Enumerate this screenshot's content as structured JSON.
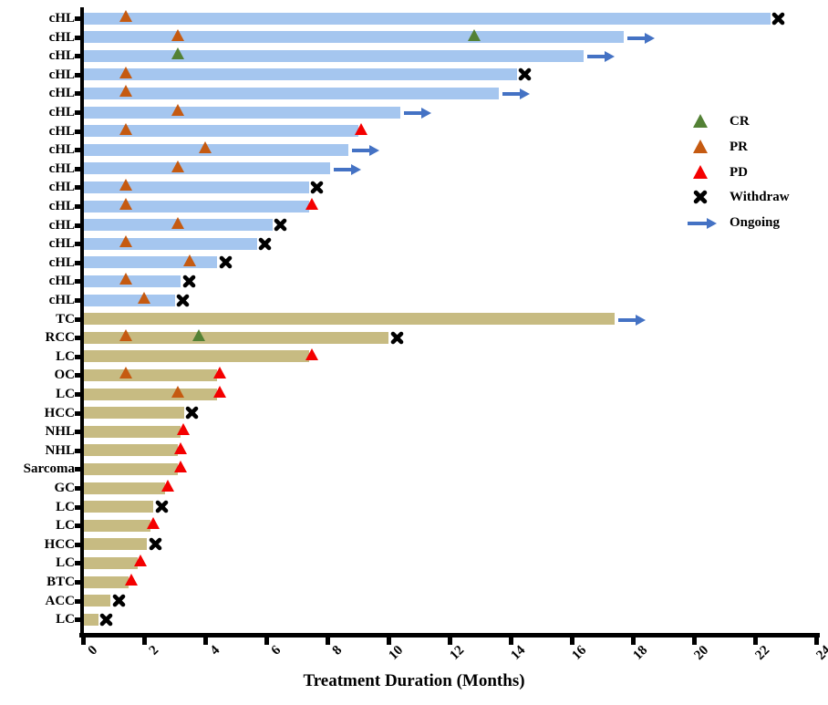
{
  "chart_data": {
    "type": "bar",
    "subtype": "swimmer-plot",
    "orientation": "horizontal",
    "title": "",
    "xlabel": "Treatment Duration (Months)",
    "ylabel": "",
    "xlim": [
      0,
      24
    ],
    "x_ticks": [
      "0",
      "2",
      "4",
      "6",
      "8",
      "10",
      "12",
      "14",
      "16",
      "18",
      "20",
      "22",
      "24"
    ],
    "grid": false,
    "legend_position": "right-upper",
    "bar_colors": {
      "cHL": "#A5C6EF",
      "other": "#C7BB82"
    },
    "marker_colors": {
      "CR": "#538135",
      "PR": "#C55A11",
      "PD": "#F40000",
      "Withdraw": "#000000",
      "Ongoing": "#4472C4"
    },
    "legend": [
      {
        "key": "CR",
        "label": "CR",
        "marker": "triangle"
      },
      {
        "key": "PR",
        "label": "PR",
        "marker": "triangle"
      },
      {
        "key": "PD",
        "label": "PD",
        "marker": "triangle"
      },
      {
        "key": "Withdraw",
        "label": "Withdraw",
        "marker": "x"
      },
      {
        "key": "Ongoing",
        "label": "Ongoing",
        "marker": "arrow"
      }
    ],
    "patients": [
      {
        "diagnosis": "cHL",
        "group": "cHL",
        "duration": 22.5,
        "end": "Withdraw",
        "events": [
          {
            "type": "PR",
            "month": 1.4
          }
        ]
      },
      {
        "diagnosis": "cHL",
        "group": "cHL",
        "duration": 17.7,
        "end": "Ongoing",
        "events": [
          {
            "type": "PR",
            "month": 3.1
          },
          {
            "type": "CR",
            "month": 12.8
          }
        ]
      },
      {
        "diagnosis": "cHL",
        "group": "cHL",
        "duration": 16.4,
        "end": "Ongoing",
        "events": [
          {
            "type": "CR",
            "month": 3.1
          }
        ]
      },
      {
        "diagnosis": "cHL",
        "group": "cHL",
        "duration": 14.2,
        "end": "Withdraw",
        "events": [
          {
            "type": "PR",
            "month": 1.4
          }
        ]
      },
      {
        "diagnosis": "cHL",
        "group": "cHL",
        "duration": 13.6,
        "end": "Ongoing",
        "events": [
          {
            "type": "PR",
            "month": 1.4
          }
        ]
      },
      {
        "diagnosis": "cHL",
        "group": "cHL",
        "duration": 10.4,
        "end": "Ongoing",
        "events": [
          {
            "type": "PR",
            "month": 3.1
          }
        ]
      },
      {
        "diagnosis": "cHL",
        "group": "cHL",
        "duration": 9.0,
        "end": "PD",
        "events": [
          {
            "type": "PR",
            "month": 1.4
          }
        ]
      },
      {
        "diagnosis": "cHL",
        "group": "cHL",
        "duration": 8.7,
        "end": "Ongoing",
        "events": [
          {
            "type": "PR",
            "month": 4.0
          }
        ]
      },
      {
        "diagnosis": "cHL",
        "group": "cHL",
        "duration": 8.1,
        "end": "Ongoing",
        "events": [
          {
            "type": "PR",
            "month": 3.1
          }
        ]
      },
      {
        "diagnosis": "cHL",
        "group": "cHL",
        "duration": 7.4,
        "end": "Withdraw",
        "events": [
          {
            "type": "PR",
            "month": 1.4
          }
        ]
      },
      {
        "diagnosis": "cHL",
        "group": "cHL",
        "duration": 7.4,
        "end": "PD",
        "events": [
          {
            "type": "PR",
            "month": 1.4
          }
        ]
      },
      {
        "diagnosis": "cHL",
        "group": "cHL",
        "duration": 6.2,
        "end": "Withdraw",
        "events": [
          {
            "type": "PR",
            "month": 3.1
          }
        ]
      },
      {
        "diagnosis": "cHL",
        "group": "cHL",
        "duration": 5.7,
        "end": "Withdraw",
        "events": [
          {
            "type": "PR",
            "month": 1.4
          }
        ]
      },
      {
        "diagnosis": "cHL",
        "group": "cHL",
        "duration": 4.4,
        "end": "Withdraw",
        "events": [
          {
            "type": "PR",
            "month": 3.5
          }
        ]
      },
      {
        "diagnosis": "cHL",
        "group": "cHL",
        "duration": 3.2,
        "end": "Withdraw",
        "events": [
          {
            "type": "PR",
            "month": 1.4
          }
        ]
      },
      {
        "diagnosis": "cHL",
        "group": "cHL",
        "duration": 3.0,
        "end": "Withdraw",
        "events": [
          {
            "type": "PR",
            "month": 2.0
          }
        ]
      },
      {
        "diagnosis": "TC",
        "group": "other",
        "duration": 17.4,
        "end": "Ongoing",
        "events": []
      },
      {
        "diagnosis": "RCC",
        "group": "other",
        "duration": 10.0,
        "end": "Withdraw",
        "events": [
          {
            "type": "PR",
            "month": 1.4
          },
          {
            "type": "CR",
            "month": 3.8
          }
        ]
      },
      {
        "diagnosis": "LC",
        "group": "other",
        "duration": 7.4,
        "end": "PD",
        "events": []
      },
      {
        "diagnosis": "OC",
        "group": "other",
        "duration": 4.4,
        "end": "PD",
        "events": [
          {
            "type": "PR",
            "month": 1.4
          }
        ]
      },
      {
        "diagnosis": "LC",
        "group": "other",
        "duration": 4.4,
        "end": "PD",
        "events": [
          {
            "type": "PR",
            "month": 3.1
          }
        ]
      },
      {
        "diagnosis": "HCC",
        "group": "other",
        "duration": 3.3,
        "end": "Withdraw",
        "events": []
      },
      {
        "diagnosis": "NHL",
        "group": "other",
        "duration": 3.2,
        "end": "PD",
        "events": []
      },
      {
        "diagnosis": "NHL",
        "group": "other",
        "duration": 3.1,
        "end": "PD",
        "events": []
      },
      {
        "diagnosis": "Sarcoma",
        "group": "other",
        "duration": 3.1,
        "end": "PD",
        "events": []
      },
      {
        "diagnosis": "GC",
        "group": "other",
        "duration": 2.7,
        "end": "PD",
        "events": []
      },
      {
        "diagnosis": "LC",
        "group": "other",
        "duration": 2.3,
        "end": "Withdraw",
        "events": []
      },
      {
        "diagnosis": "LC",
        "group": "other",
        "duration": 2.2,
        "end": "PD",
        "events": []
      },
      {
        "diagnosis": "HCC",
        "group": "other",
        "duration": 2.1,
        "end": "Withdraw",
        "events": []
      },
      {
        "diagnosis": "LC",
        "group": "other",
        "duration": 1.8,
        "end": "PD",
        "events": []
      },
      {
        "diagnosis": "BTC",
        "group": "other",
        "duration": 1.5,
        "end": "PD",
        "events": []
      },
      {
        "diagnosis": "ACC",
        "group": "other",
        "duration": 0.9,
        "end": "Withdraw",
        "events": []
      },
      {
        "diagnosis": "LC",
        "group": "other",
        "duration": 0.5,
        "end": "Withdraw",
        "events": []
      }
    ]
  }
}
